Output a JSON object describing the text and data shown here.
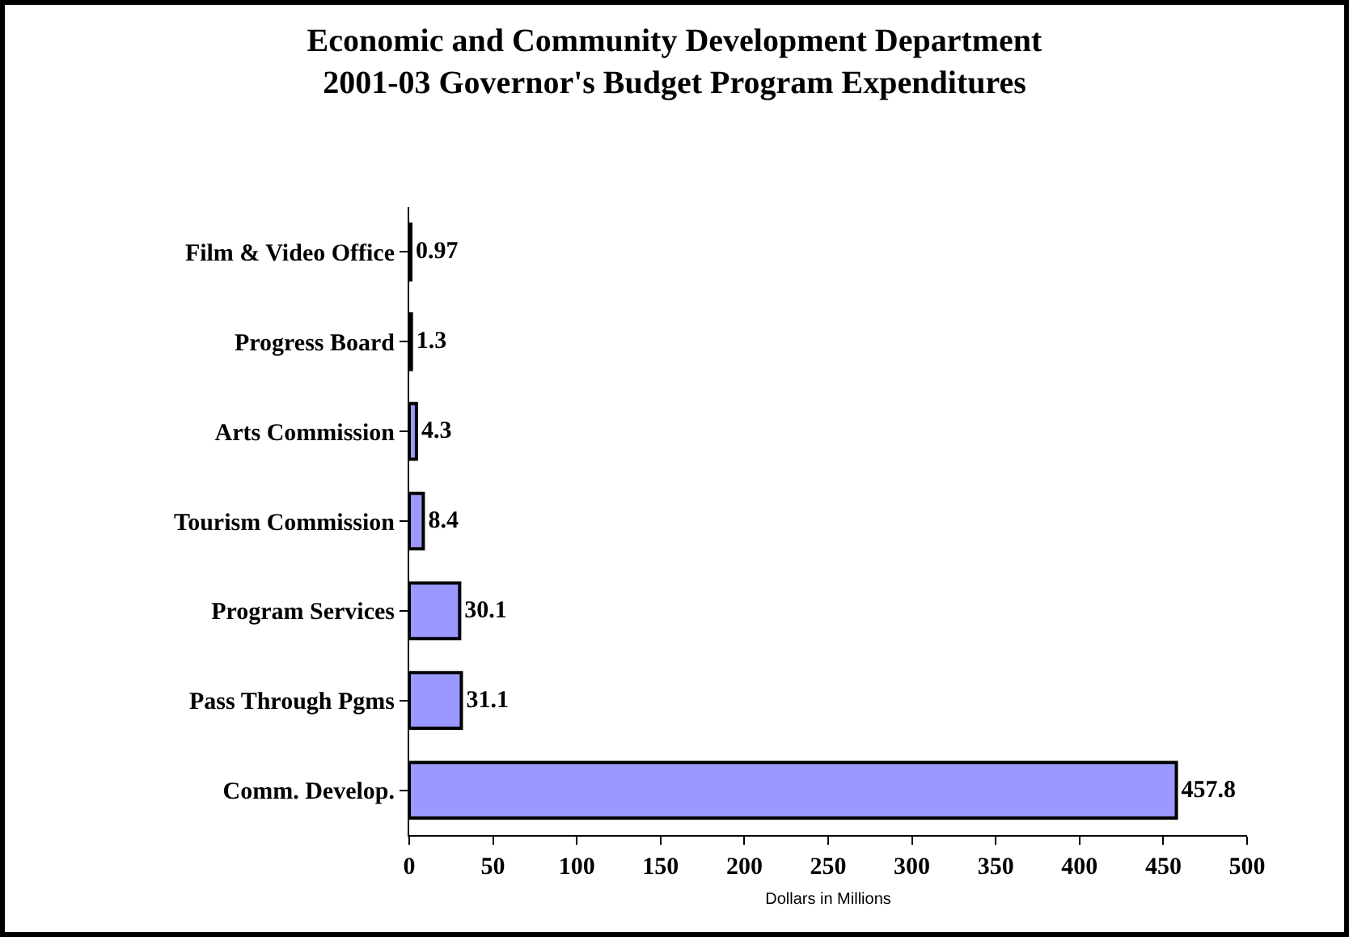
{
  "chart_data": {
    "type": "bar",
    "orientation": "horizontal",
    "title": "Economic and Community Development Department\n2001-03 Governor's Budget Program Expenditures",
    "xlabel": "Dollars in Millions",
    "categories": [
      "Film & Video Office",
      "Progress Board",
      "Arts Commission",
      "Tourism Commission",
      "Program Services",
      "Pass Through Pgms",
      "Comm. Develop."
    ],
    "values": [
      0.97,
      1.3,
      4.3,
      8.4,
      30.1,
      31.1,
      457.8
    ],
    "color": "#9999ff",
    "data_labels": true,
    "xlim": [
      0,
      500
    ],
    "xticks": [
      0,
      50,
      100,
      150,
      200,
      250,
      300,
      350,
      400,
      450,
      500
    ]
  }
}
